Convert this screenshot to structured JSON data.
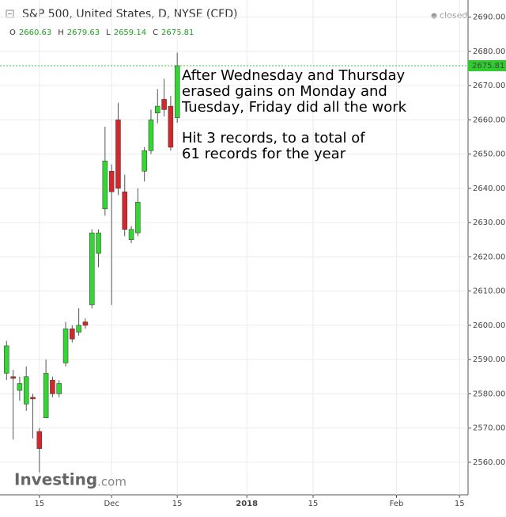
{
  "header": {
    "title": "S&P 500, United States, D, NYSE (CFD)",
    "status": "closed",
    "ohlc": [
      {
        "label": "O",
        "value": 2660.63
      },
      {
        "label": "H",
        "value": 2679.63
      },
      {
        "label": "L",
        "value": 2659.14
      },
      {
        "label": "C",
        "value": 2675.81
      }
    ]
  },
  "chart_data": {
    "type": "candlestick",
    "x": [
      0,
      1,
      2,
      3,
      4,
      5,
      6,
      7,
      8,
      9,
      10,
      11,
      12,
      13,
      14,
      15,
      16,
      17,
      18,
      19,
      20,
      21,
      22,
      23,
      24,
      25,
      26
    ],
    "open": [
      2586,
      2585,
      2581,
      2577,
      2579,
      2569,
      2573,
      2584,
      2580,
      2589,
      2599,
      2598,
      2601,
      2606,
      2621,
      2634,
      2645,
      2660,
      2639,
      2625,
      2627,
      2645,
      2651,
      2662,
      2666,
      2664,
      2660.63
    ],
    "high": [
      2595.5,
      2587,
      2585,
      2588,
      2580,
      2570,
      2590,
      2585,
      2584,
      2601,
      2600,
      2605,
      2602,
      2628,
      2628,
      2658,
      2647,
      2665,
      2644,
      2629,
      2640,
      2652,
      2663,
      2669,
      2672,
      2667,
      2679.63
    ],
    "low": [
      2584,
      2566.7,
      2578,
      2575,
      2567,
      2557,
      2573,
      2579,
      2579,
      2588,
      2595,
      2597,
      2599,
      2605,
      2617,
      2632,
      2606,
      2638,
      2626,
      2624,
      2626,
      2642,
      2650,
      2659,
      2661,
      2651,
      2659.14
    ],
    "close": [
      2594,
      2584.5,
      2583,
      2585,
      2578.5,
      2564,
      2586,
      2580,
      2583,
      2599,
      2596,
      2600,
      2600,
      2627,
      2627,
      2648,
      2639,
      2640,
      2628,
      2628,
      2636,
      2651,
      2660,
      2664,
      2663,
      2652,
      2675.81
    ],
    "up_color": "#33d633",
    "down_color": "#d5262b",
    "wick_color": "#555555",
    "xlim": [
      -1,
      70.3
    ],
    "xticks": [
      {
        "value": 5,
        "label": "15"
      },
      {
        "value": 16,
        "label": "Dec"
      },
      {
        "value": 26,
        "label": "15"
      },
      {
        "value": 36.6,
        "label": "2018"
      },
      {
        "value": 46.7,
        "label": "15"
      },
      {
        "value": 59.4,
        "label": "Feb"
      },
      {
        "value": 69,
        "label": "15"
      }
    ],
    "ylim": [
      2550.5,
      2695
    ],
    "yticks": [
      {
        "value": 2560,
        "label": "2560.00"
      },
      {
        "value": 2570,
        "label": "2570.00"
      },
      {
        "value": 2580,
        "label": "2580.00"
      },
      {
        "value": 2590,
        "label": "2590.00"
      },
      {
        "value": 2600,
        "label": "2600.00"
      },
      {
        "value": 2610,
        "label": "2610.00"
      },
      {
        "value": 2620,
        "label": "2620.00"
      },
      {
        "value": 2630,
        "label": "2630.00"
      },
      {
        "value": 2640,
        "label": "2640.00"
      },
      {
        "value": 2650,
        "label": "2650.00"
      },
      {
        "value": 2660,
        "label": "2660.00"
      },
      {
        "value": 2670,
        "label": "2670.00"
      },
      {
        "value": 2680,
        "label": "2680.00"
      },
      {
        "value": 2690,
        "label": "2690.00"
      }
    ],
    "grid": true,
    "last_price": 2675.81,
    "last_price_color": "#2ecc2e",
    "annotations": [
      [
        "After Wednesday and Thursday",
        "erased gains on Monday and",
        "Tuesday, Friday did all the work"
      ],
      [
        "Hit 3 records, to a total of",
        "61 records for the year"
      ]
    ],
    "watermark": [
      "Investing",
      ".com"
    ]
  }
}
